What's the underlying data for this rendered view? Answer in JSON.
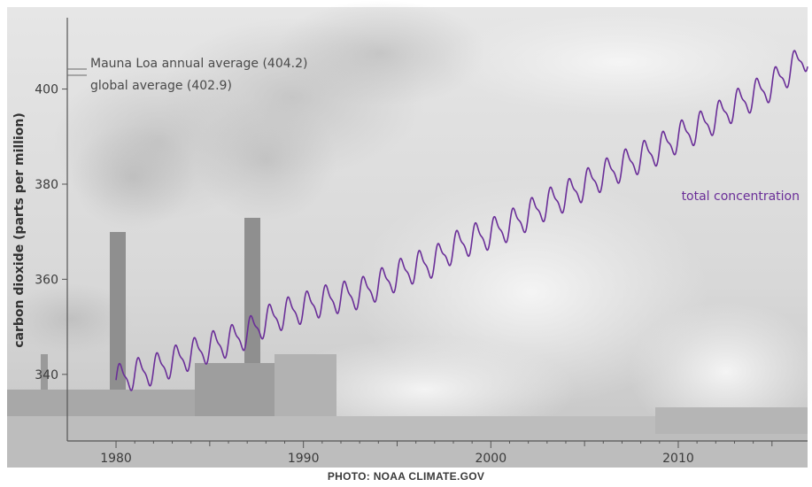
{
  "credit": "PHOTO: NOAA CLIMATE.GOV",
  "colors": {
    "line": "#6a2e98",
    "axis": "#555555",
    "sky_top": "#e6e6e6",
    "sky_bottom": "#c9c9c9"
  },
  "chart_data": {
    "type": "line",
    "title": "",
    "xlabel": "",
    "ylabel": "carbon dioxide (parts per million)",
    "xlim": [
      1977.4,
      2016.9
    ],
    "ylim": [
      326,
      415
    ],
    "x_ticks": [
      1980,
      1990,
      2000,
      2010
    ],
    "y_ticks": [
      340,
      360,
      380,
      400
    ],
    "grid": false,
    "legend": "none",
    "series": [
      {
        "name": "total concentration",
        "annual_mean": [
          [
            1980,
            338.8
          ],
          [
            1981,
            340.1
          ],
          [
            1982,
            341.0
          ],
          [
            1983,
            342.6
          ],
          [
            1984,
            344.2
          ],
          [
            1985,
            345.7
          ],
          [
            1986,
            346.9
          ],
          [
            1987,
            348.6
          ],
          [
            1988,
            351.2
          ],
          [
            1989,
            352.8
          ],
          [
            1990,
            354.0
          ],
          [
            1991,
            355.4
          ],
          [
            1992,
            356.2
          ],
          [
            1993,
            357.0
          ],
          [
            1994,
            358.8
          ],
          [
            1995,
            360.8
          ],
          [
            1996,
            362.6
          ],
          [
            1997,
            363.7
          ],
          [
            1998,
            366.7
          ],
          [
            1999,
            368.4
          ],
          [
            2000,
            369.6
          ],
          [
            2001,
            371.3
          ],
          [
            2002,
            373.5
          ],
          [
            2003,
            375.8
          ],
          [
            2004,
            377.5
          ],
          [
            2005,
            379.8
          ],
          [
            2006,
            381.9
          ],
          [
            2007,
            383.8
          ],
          [
            2008,
            385.6
          ],
          [
            2009,
            387.4
          ],
          [
            2010,
            389.9
          ],
          [
            2011,
            391.7
          ],
          [
            2012,
            393.9
          ],
          [
            2013,
            396.5
          ],
          [
            2014,
            398.6
          ],
          [
            2015,
            400.8
          ],
          [
            2016,
            404.2
          ]
        ],
        "seasonal_amplitude": 3.3,
        "x_end": 2016.9
      }
    ],
    "annotations": [
      {
        "label": "Mauna Loa annual average (404.2)",
        "value": 404.2
      },
      {
        "label": "global average (402.9)",
        "value": 402.9
      }
    ]
  }
}
